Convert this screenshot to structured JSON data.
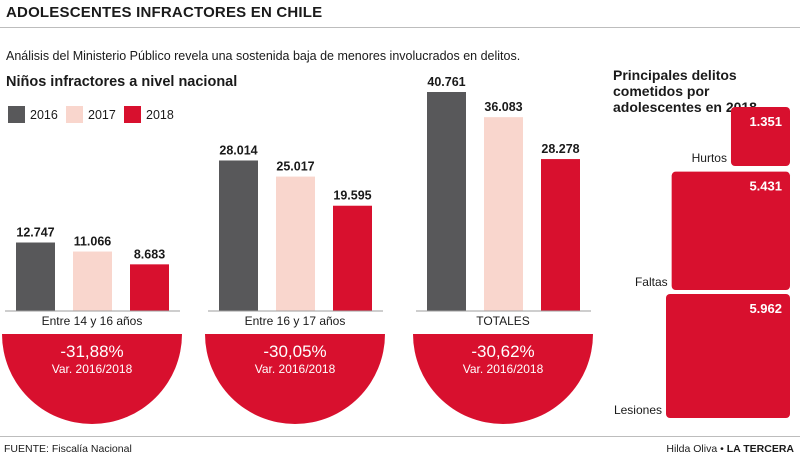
{
  "header": {
    "title": "ADOLESCENTES INFRACTORES EN CHILE",
    "subtitle": "Análisis del Ministerio Público revela una sostenida baja de menores involucrados en delitos."
  },
  "main_chart_title": "Niños infractores a nivel nacional",
  "legend": [
    {
      "label": "2016",
      "color": "#58585a"
    },
    {
      "label": "2017",
      "color": "#f9d6cd"
    },
    {
      "label": "2018",
      "color": "#d8102e"
    }
  ],
  "chart_data": [
    {
      "type": "bar",
      "title": "Niños infractores a nivel nacional",
      "categories": [
        "Entre 14 y 16 años",
        "Entre 16 y 17 años",
        "TOTALES"
      ],
      "series": [
        {
          "name": "2016",
          "values": [
            12747,
            28014,
            40761
          ],
          "labels": [
            "12.747",
            "28.014",
            "40.761"
          ]
        },
        {
          "name": "2017",
          "values": [
            11066,
            25017,
            36083
          ],
          "labels": [
            "11.066",
            "25.017",
            "36.083"
          ]
        },
        {
          "name": "2018",
          "values": [
            8683,
            19595,
            28278
          ],
          "labels": [
            "8.683",
            "19.595",
            "28.278"
          ]
        }
      ],
      "variation": [
        {
          "value": "-31,88%",
          "note": "Var. 2016/2018"
        },
        {
          "value": "-30,05%",
          "note": "Var. 2016/2018"
        },
        {
          "value": "-30,62%",
          "note": "Var. 2016/2018"
        }
      ]
    },
    {
      "type": "bar",
      "title": "Principales delitos cometidos por adolescentes en 2018",
      "categories": [
        "Hurtos",
        "Faltas",
        "Lesiones"
      ],
      "values": [
        1351,
        5431,
        5962
      ],
      "labels": [
        "1.351",
        "5.431",
        "5.962"
      ]
    }
  ],
  "side_title": "Principales delitos cometidos por adolescentes en 2018",
  "footer": {
    "source": "FUENTE: Fiscalía Nacional",
    "author": "Hilda Oliva",
    "separator": "•",
    "brand": "LA TERCERA"
  }
}
